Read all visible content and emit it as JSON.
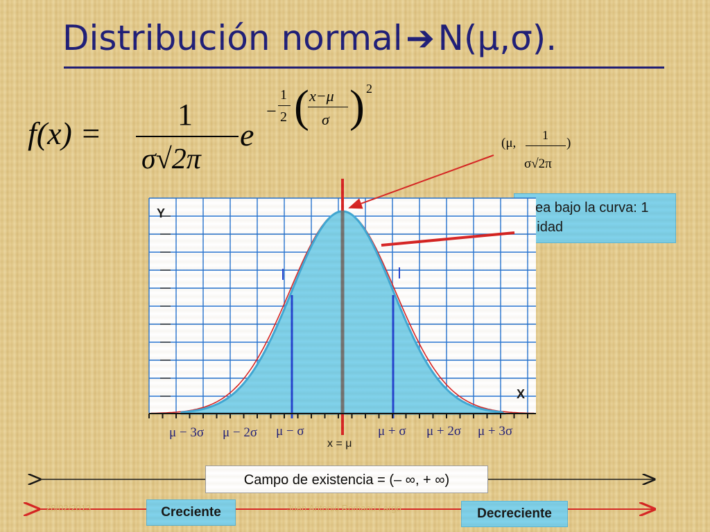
{
  "slide": {
    "title": "Distribución normal",
    "title_arrow": "➔",
    "title_notation": "N(μ,σ).",
    "formula": {
      "lhs": "f(x) =",
      "numerator": "1",
      "denominator": "σ√2π",
      "base": "e",
      "exp_sign": "−",
      "exp_half_num": "1",
      "exp_half_den": "2",
      "exp_num": "x−μ",
      "exp_den": "σ",
      "exp_power": "2"
    },
    "peak_label": {
      "open": "(μ,",
      "numerator": "1",
      "close": ")",
      "denominator": "σ√2π"
    },
    "area_callout": "Área bajo la curva: 1 unidad",
    "axis": {
      "y_label": "Y",
      "x_label": "X"
    },
    "ticks": [
      "μ − 3σ",
      "μ − 2σ",
      "μ − σ",
      "x = μ",
      "μ + σ",
      "μ + 2σ",
      "μ + 3σ"
    ],
    "domain_label": "Campo de existencia = (– ∞, + ∞)",
    "increasing_label": "Creciente",
    "decreasing_label": "Decreciente",
    "footer": {
      "date": "28/02/2013",
      "author": "Juan Antonio Romano Largo"
    },
    "colors": {
      "title": "#1a1a78",
      "curve_fill": "#7bd0ea",
      "curve_stroke": "#3ba7d6",
      "reference_curve": "#d62020",
      "mean_line": "#d62020",
      "sigma_lines": "#1f3fd0",
      "grid": "#1e6fd0"
    }
  }
}
